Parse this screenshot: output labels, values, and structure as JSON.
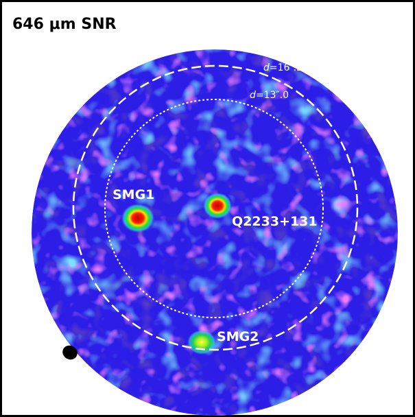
{
  "title": "646 μm SNR",
  "circles": [
    {
      "var": "d",
      "text": "=16″.5"
    },
    {
      "var": "d",
      "text": "=13″.0"
    }
  ],
  "sources": [
    {
      "label": "SMG1"
    },
    {
      "label": "Q2233+131"
    },
    {
      "label": "SMG2"
    }
  ]
}
